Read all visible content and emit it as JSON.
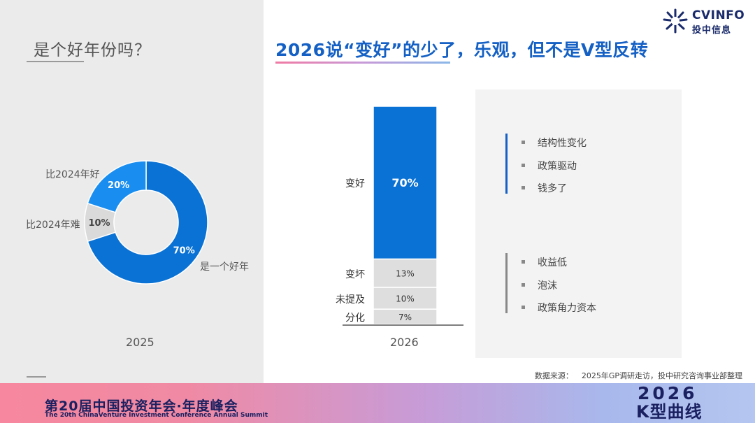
{
  "left": {
    "title": "是个好年份吗？"
  },
  "main": {
    "title": "2026说“变好”的少了，乐观，但不是V型反转"
  },
  "logo": {
    "name": "CVINFO",
    "sub": "投中信息"
  },
  "chart_data": [
    {
      "type": "pie",
      "variant": "donut",
      "year_label": "2025",
      "slices": [
        {
          "label": "是一个好年",
          "value": 70,
          "value_label": "70%",
          "color": "#0a72d4"
        },
        {
          "label": "比2024年难",
          "value": 10,
          "value_label": "10%",
          "color": "#dadada"
        },
        {
          "label": "比2024年好",
          "value": 20,
          "value_label": "20%",
          "color": "#1a8ef0"
        }
      ]
    },
    {
      "type": "bar",
      "variant": "stacked-100",
      "year_label": "2026",
      "segments": [
        {
          "label": "分化",
          "value": 7,
          "value_label": "7%",
          "color": "#dedede"
        },
        {
          "label": "未提及",
          "value": 10,
          "value_label": "10%",
          "color": "#dedede"
        },
        {
          "label": "变坏",
          "value": 13,
          "value_label": "13%",
          "color": "#dedede"
        },
        {
          "label": "变好",
          "value": 70,
          "value_label": "70%",
          "color": "#0a72d4"
        }
      ]
    }
  ],
  "reasons": {
    "positive": [
      "结构性变化",
      "政策驱动",
      "钱多了"
    ],
    "negative": [
      "收益低",
      "泡沫",
      "政策角力资本"
    ],
    "positive_color": "#1460c4",
    "negative_color": "#888888"
  },
  "source": {
    "label": "数据来源：",
    "text": "2025年GP调研走访，投中研究咨询事业部整理"
  },
  "footer": {
    "title_cn": "第20届中国投资年会·年度峰会",
    "title_en": "The 20th ChinaVenture Investment Conference Annual Summit",
    "badge_year": "2026",
    "badge_text": "K型曲线"
  }
}
